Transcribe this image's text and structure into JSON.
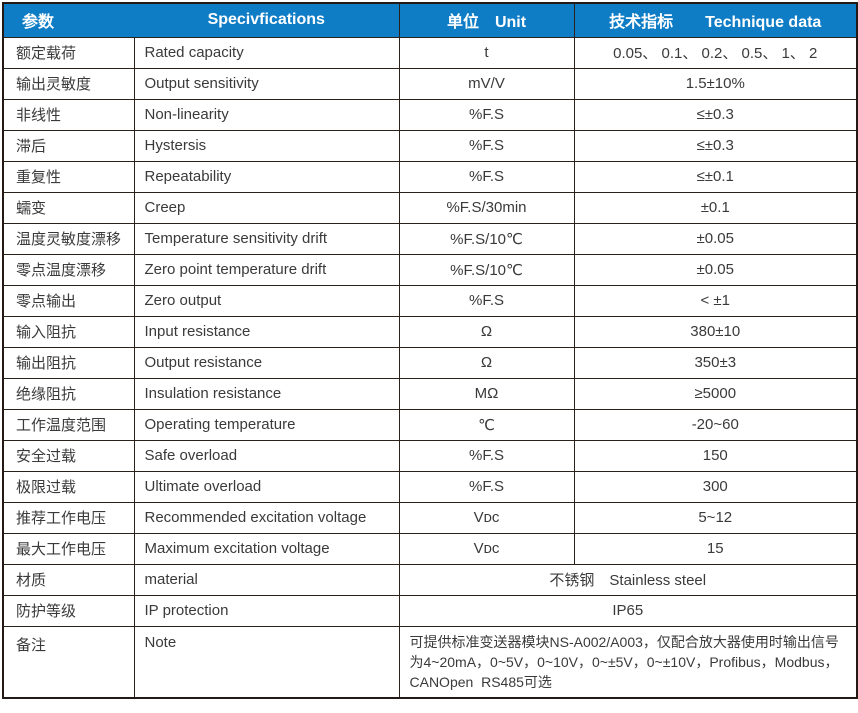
{
  "header": {
    "bg_color": "#0f7dc6",
    "text_color": "#ffffff",
    "param_label": "参数",
    "spec_label": "Specivfications",
    "unit_label": "单位　Unit",
    "data_label": "技术指标　　Technique data"
  },
  "table": {
    "rows": [
      {
        "zh": "额定载荷",
        "en": "Rated capacity",
        "unit": "t",
        "value": "0.05、 0.1、 0.2、 0.5、 1、 2"
      },
      {
        "zh": "输出灵敏度",
        "en": "Output sensitivity",
        "unit": "mV/V",
        "value": "1.5±10%"
      },
      {
        "zh": "非线性",
        "en": "Non-linearity",
        "unit": "%F.S",
        "value": "≤±0.3"
      },
      {
        "zh": "滞后",
        "en": "Hystersis",
        "unit": "%F.S",
        "value": "≤±0.3"
      },
      {
        "zh": "重复性",
        "en": "Repeatability",
        "unit": "%F.S",
        "value": "≤±0.1"
      },
      {
        "zh": "蠕变",
        "en": "Creep",
        "unit": "%F.S/30min",
        "value": "±0.1"
      },
      {
        "zh": "温度灵敏度漂移",
        "en": "Temperature sensitivity drift",
        "unit": "%F.S/10℃",
        "value": "±0.05"
      },
      {
        "zh": "零点温度漂移",
        "en": "Zero point temperature drift",
        "unit": "%F.S/10℃",
        "value": "±0.05"
      },
      {
        "zh": "零点输出",
        "en": "Zero output",
        "unit": "%F.S",
        "value": "< ±1"
      },
      {
        "zh": "输入阻抗",
        "en": "Input resistance",
        "unit": "Ω",
        "value": "380±10"
      },
      {
        "zh": "输出阻抗",
        "en": "Output resistance",
        "unit": "Ω",
        "value": "350±3"
      },
      {
        "zh": "绝缘阻抗",
        "en": "Insulation resistance",
        "unit": "MΩ",
        "value": "≥5000"
      },
      {
        "zh": "工作温度范围",
        "en": "Operating temperature",
        "unit": "℃",
        "value": "-20~60"
      },
      {
        "zh": "安全过载",
        "en": "Safe overload",
        "unit": "%F.S",
        "value": "150"
      },
      {
        "zh": "极限过载",
        "en": "Ultimate overload",
        "unit": "%F.S",
        "value": "300"
      },
      {
        "zh": "推荐工作电压",
        "en": "Recommended excitation voltage",
        "unit": "Vᴅᴄ",
        "value": "5~12"
      },
      {
        "zh": "最大工作电压",
        "en": "Maximum excitation voltage",
        "unit": "Vᴅᴄ",
        "value": "15"
      },
      {
        "zh": "材质",
        "en": "material",
        "span": true,
        "value": "不锈钢　Stainless steel"
      },
      {
        "zh": "防护等级",
        "en": "IP protection",
        "span": true,
        "value": "IP65"
      },
      {
        "zh": "备注",
        "en": "Note",
        "span": true,
        "note": true,
        "value": "可提供标准变送器模块NS-A002/A003，仅配合放大器使用时输出信号为4~20mA，0~5V，0~10V，0~±5V，0~±10V，Profibus，Modbus，CANOpen  RS485可选"
      }
    ]
  }
}
